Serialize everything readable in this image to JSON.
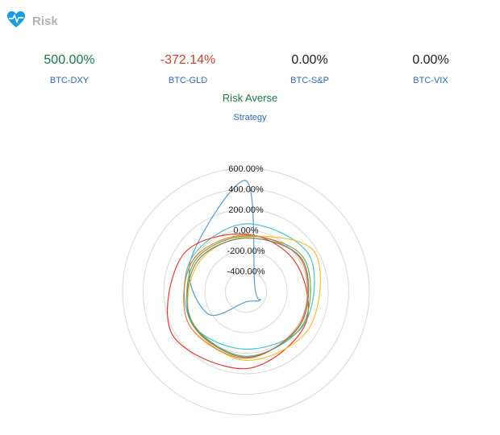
{
  "header": {
    "title": "Risk",
    "icon": "heart-pulse-icon",
    "icon_color": "#1a9de0"
  },
  "metrics": [
    {
      "value": "500.00%",
      "label": "BTC-DXY",
      "color": "#1e7b45"
    },
    {
      "value": "-372.14%",
      "label": "BTC-GLD",
      "color": "#c84630"
    },
    {
      "value": "0.00%",
      "label": "BTC-S&P",
      "color": "#222222"
    },
    {
      "value": "0.00%",
      "label": "BTC-VIX",
      "color": "#222222"
    }
  ],
  "strategy": {
    "title": "Risk Averse",
    "subtitle": "Strategy"
  },
  "chart_data": {
    "type": "radar",
    "tick_labels": [
      "600.00%",
      "400.00%",
      "200.00%",
      "0.00%",
      "-200.00%",
      "-400.00%"
    ],
    "rlim": [
      -600,
      600
    ],
    "grid": true,
    "series": [
      {
        "color": "#5b9bd5",
        "values": [
          480,
          -500,
          -440,
          -500,
          -170,
          20
        ]
      },
      {
        "color": "#4bc4c4",
        "values": [
          60,
          110,
          50,
          -40,
          10,
          20
        ]
      },
      {
        "color": "#e64030",
        "values": [
          -40,
          -40,
          60,
          150,
          230,
          110
        ]
      },
      {
        "color": "#f2c230",
        "values": [
          -70,
          170,
          110,
          70,
          10,
          -60
        ]
      },
      {
        "color": "#70ad47",
        "values": [
          -60,
          50,
          40,
          30,
          0,
          -20
        ]
      },
      {
        "color": "#ed7d31",
        "values": [
          -50,
          20,
          10,
          50,
          40,
          0
        ]
      },
      {
        "color": "#7f7f7f",
        "values": [
          -80,
          30,
          20,
          40,
          10,
          -40
        ]
      }
    ]
  }
}
